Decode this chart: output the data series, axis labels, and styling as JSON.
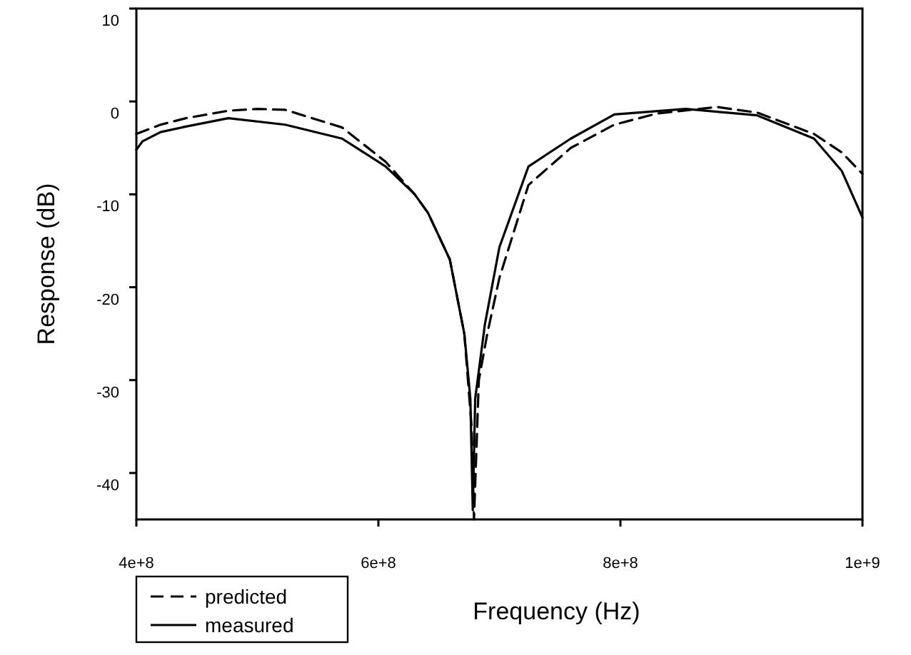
{
  "chart_data": {
    "type": "line",
    "xlabel": "Frequency (Hz)",
    "ylabel": "Response (dB)",
    "xlim": [
      400000000,
      1000000000
    ],
    "xticks": [
      {
        "value": 400000000,
        "label": "4e+8"
      },
      {
        "value": 600000000,
        "label": "6e+8"
      },
      {
        "value": 800000000,
        "label": "8e+8"
      },
      {
        "value": 1000000000,
        "label": "1e+9"
      }
    ],
    "ylim": [
      -45,
      10
    ],
    "yticks": [
      10,
      0,
      -10,
      -20,
      -30,
      -40
    ],
    "grid": false,
    "legend": "bottom left",
    "series": [
      {
        "name": "predicted",
        "color": "#000000",
        "line_style": "dashed",
        "x": [
          400000000,
          420000000,
          441000000,
          476000000,
          500000000,
          523000000,
          570000000,
          606000000,
          630000000,
          641000000,
          659000000,
          671000000,
          677000000,
          679000000,
          683000000,
          690000000,
          700000000,
          724000000,
          759000000,
          795000000,
          830000000,
          880000000,
          913000000,
          960000000,
          983000000,
          1000000000
        ],
        "values": [
          -3.5,
          -2.5,
          -1.8,
          -1.0,
          -0.8,
          -0.9,
          -2.8,
          -6.5,
          -10,
          -12,
          -17,
          -25,
          -35,
          -45,
          -30,
          -25,
          -19,
          -9,
          -5,
          -2.5,
          -1.3,
          -0.6,
          -1.2,
          -3.5,
          -5.5,
          -7.8
        ]
      },
      {
        "name": "measured",
        "color": "#000000",
        "line_style": "solid",
        "x": [
          400000000,
          405000000,
          420000000,
          441000000,
          476000000,
          523000000,
          570000000,
          606000000,
          630000000,
          641000000,
          659000000,
          671000000,
          676000000,
          678000000,
          680000000,
          688000000,
          700000000,
          724000000,
          759000000,
          795000000,
          854000000,
          913000000,
          960000000,
          983000000,
          1000000000
        ],
        "values": [
          -5.2,
          -4.3,
          -3.3,
          -2.7,
          -1.8,
          -2.5,
          -4,
          -7,
          -10,
          -12,
          -17,
          -25,
          -32,
          -44,
          -32,
          -24,
          -15.7,
          -7,
          -4,
          -1.4,
          -0.8,
          -1.5,
          -4,
          -7.5,
          -12.5
        ]
      }
    ]
  }
}
